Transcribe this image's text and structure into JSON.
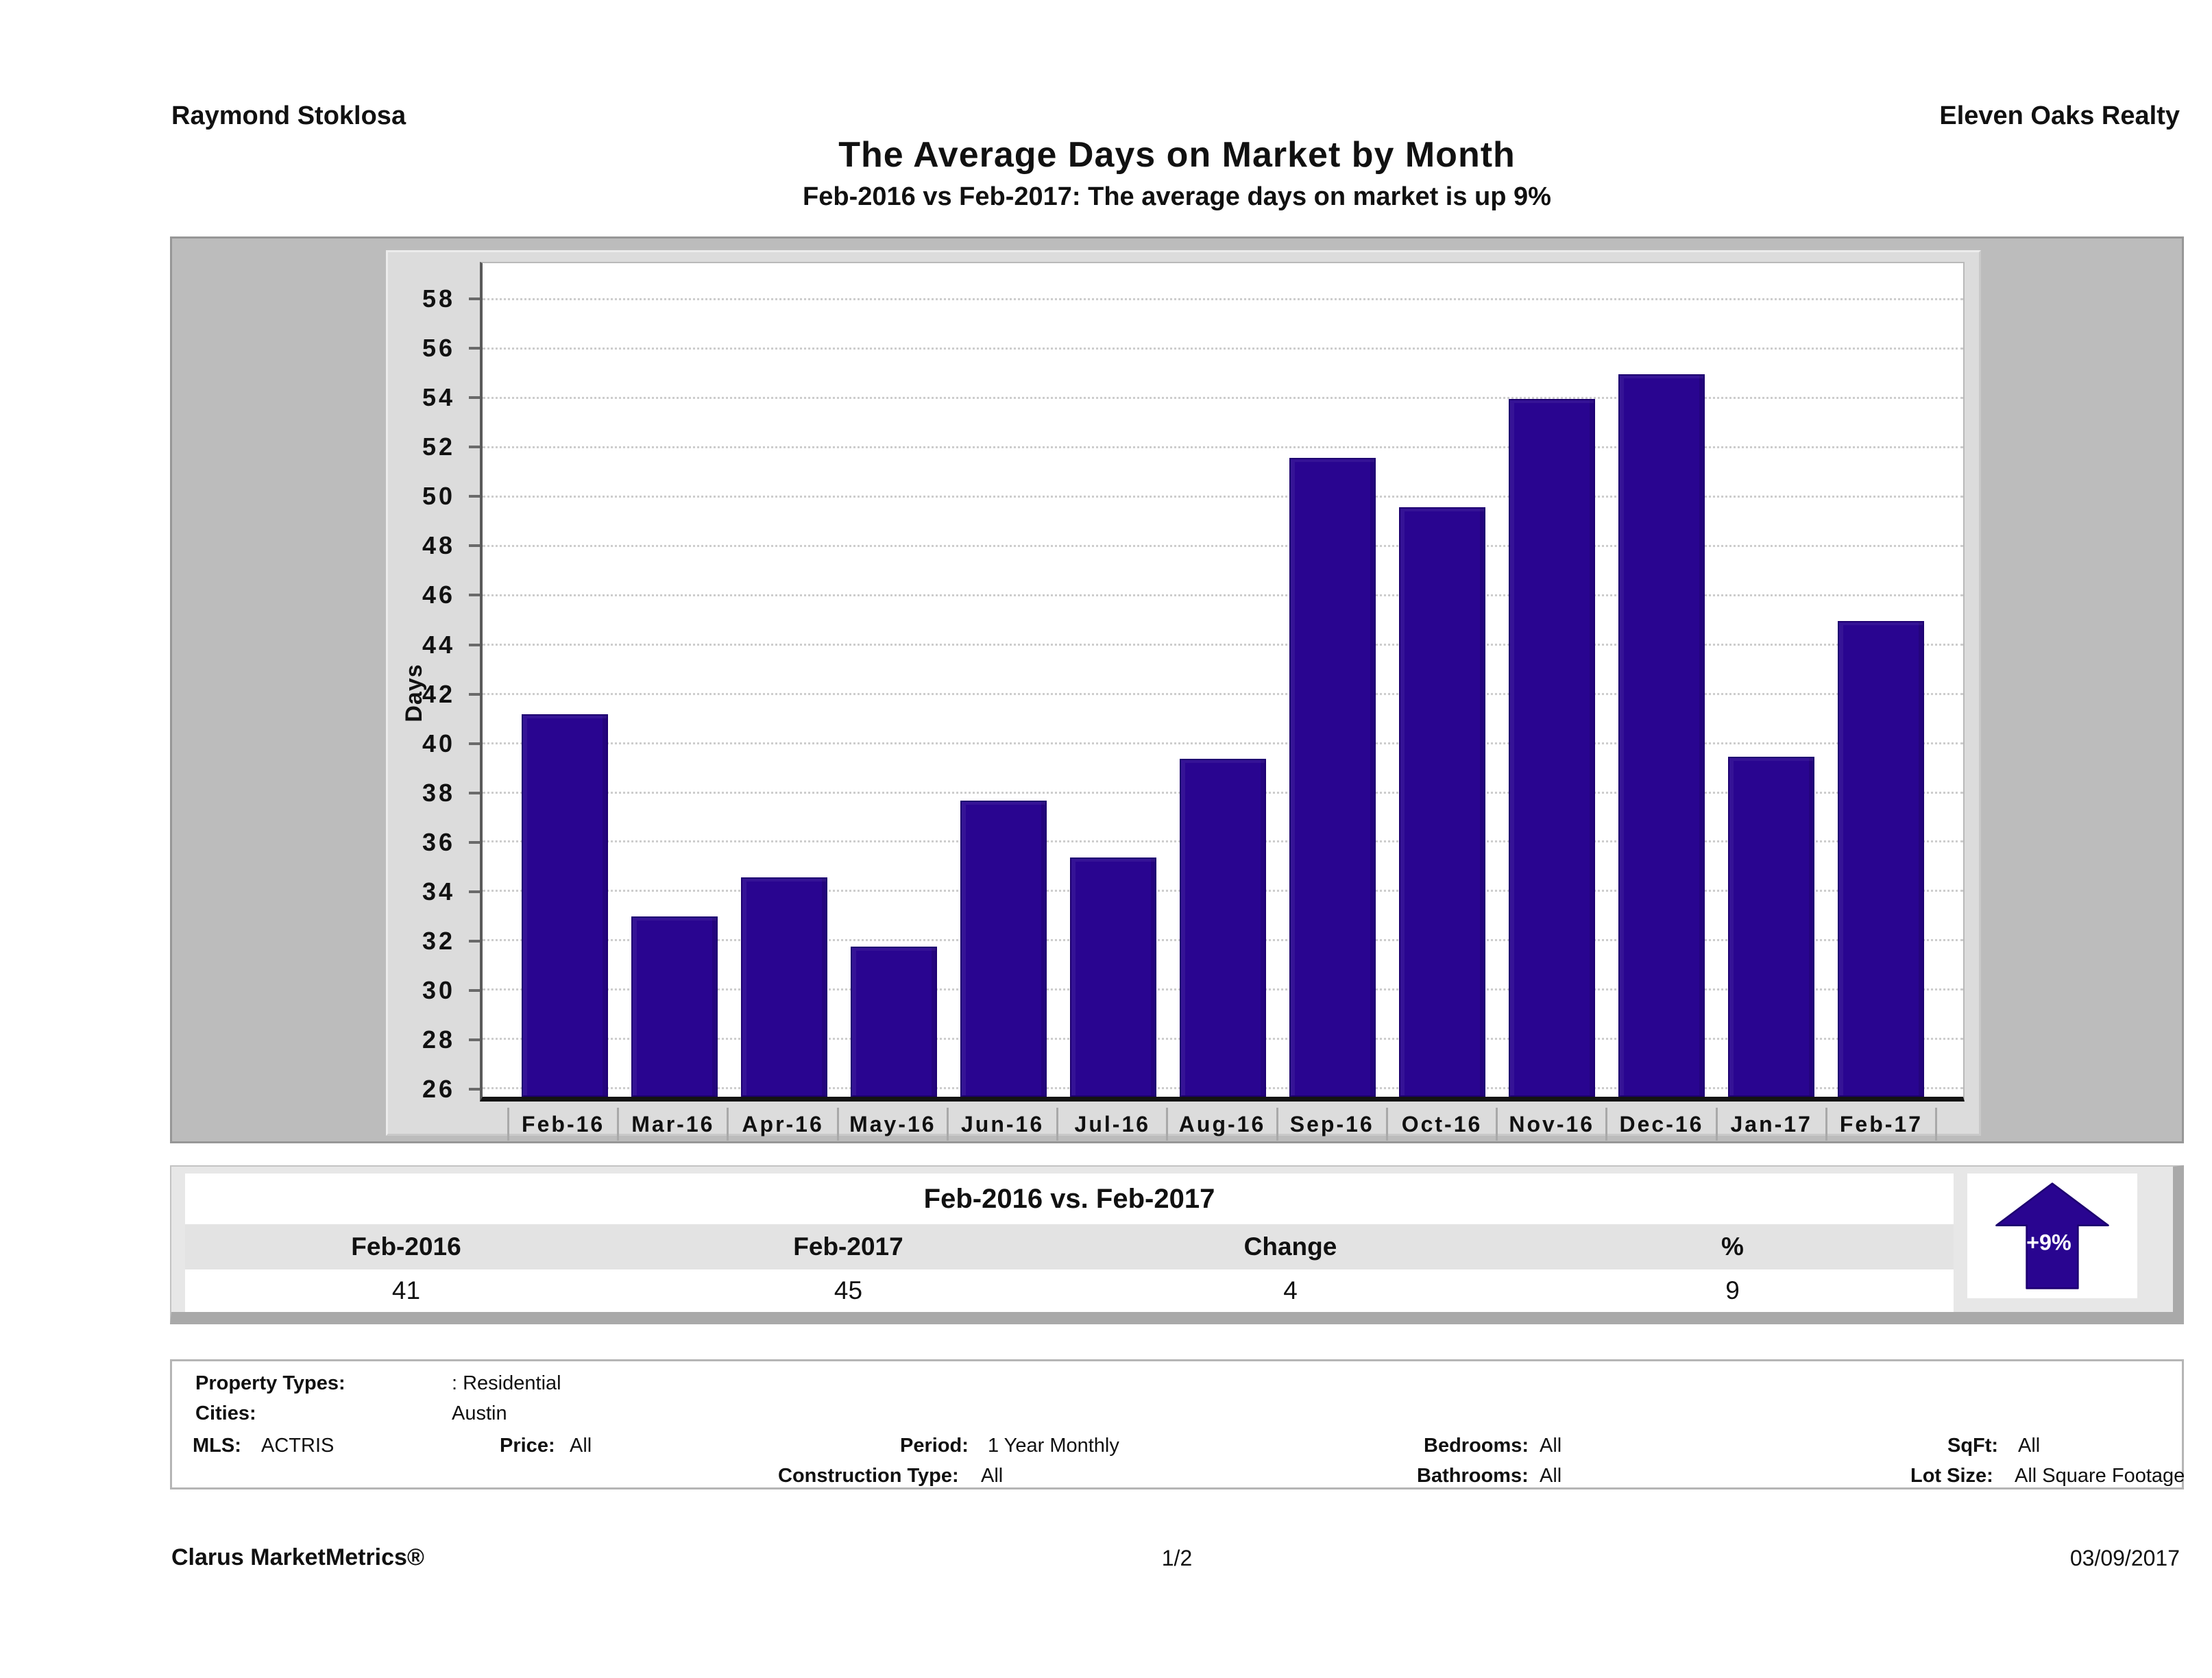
{
  "header": {
    "left": "Raymond Stoklosa",
    "right": "Eleven Oaks Realty"
  },
  "title": "The Average Days on Market by Month",
  "subtitle": "Feb-2016 vs Feb-2017: The average days on market is up 9%",
  "chart_data": {
    "type": "bar",
    "title": "The Average Days on Market by Month",
    "categories": [
      "Feb-16",
      "Mar-16",
      "Apr-16",
      "May-16",
      "Jun-16",
      "Jul-16",
      "Aug-16",
      "Sep-16",
      "Oct-16",
      "Nov-16",
      "Dec-16",
      "Jan-17",
      "Feb-17"
    ],
    "values": [
      41.2,
      33.0,
      34.6,
      31.8,
      37.7,
      35.4,
      39.4,
      51.6,
      49.6,
      54.0,
      55.0,
      39.5,
      45.0
    ],
    "xlabel": "",
    "ylabel": "Days",
    "yticks": [
      26,
      28,
      30,
      32,
      34,
      36,
      38,
      40,
      42,
      44,
      46,
      48,
      50,
      52,
      54,
      56,
      58
    ],
    "ylim": [
      25.7,
      59.5
    ],
    "grid": "on",
    "legend": "none",
    "bar_color": "#290590"
  },
  "summary": {
    "title": "Feb-2016 vs. Feb-2017",
    "columns": [
      "Feb-2016",
      "Feb-2017",
      "Change",
      "%"
    ],
    "values": [
      "41",
      "45",
      "4",
      "9"
    ],
    "badge": "+9%",
    "badge_color": "#290590"
  },
  "criteria": {
    "property_types": {
      "label": "Property Types:",
      "value": ": Residential"
    },
    "cities": {
      "label": "Cities:",
      "value": "Austin"
    },
    "mls": {
      "label": "MLS:",
      "value": "ACTRIS"
    },
    "price": {
      "label": "Price:",
      "value": "All"
    },
    "period": {
      "label": "Period:",
      "value": "1 Year Monthly"
    },
    "bedrooms": {
      "label": "Bedrooms:",
      "value": "All"
    },
    "sqft": {
      "label": "SqFt:",
      "value": "All"
    },
    "construction_type": {
      "label": "Construction Type:",
      "value": "All"
    },
    "bathrooms": {
      "label": "Bathrooms:",
      "value": "All"
    },
    "lot_size": {
      "label": "Lot Size:",
      "value": "All Square Footage"
    }
  },
  "footer": {
    "left": "Clarus MarketMetrics®",
    "center": "1/2",
    "right": "03/09/2017"
  }
}
